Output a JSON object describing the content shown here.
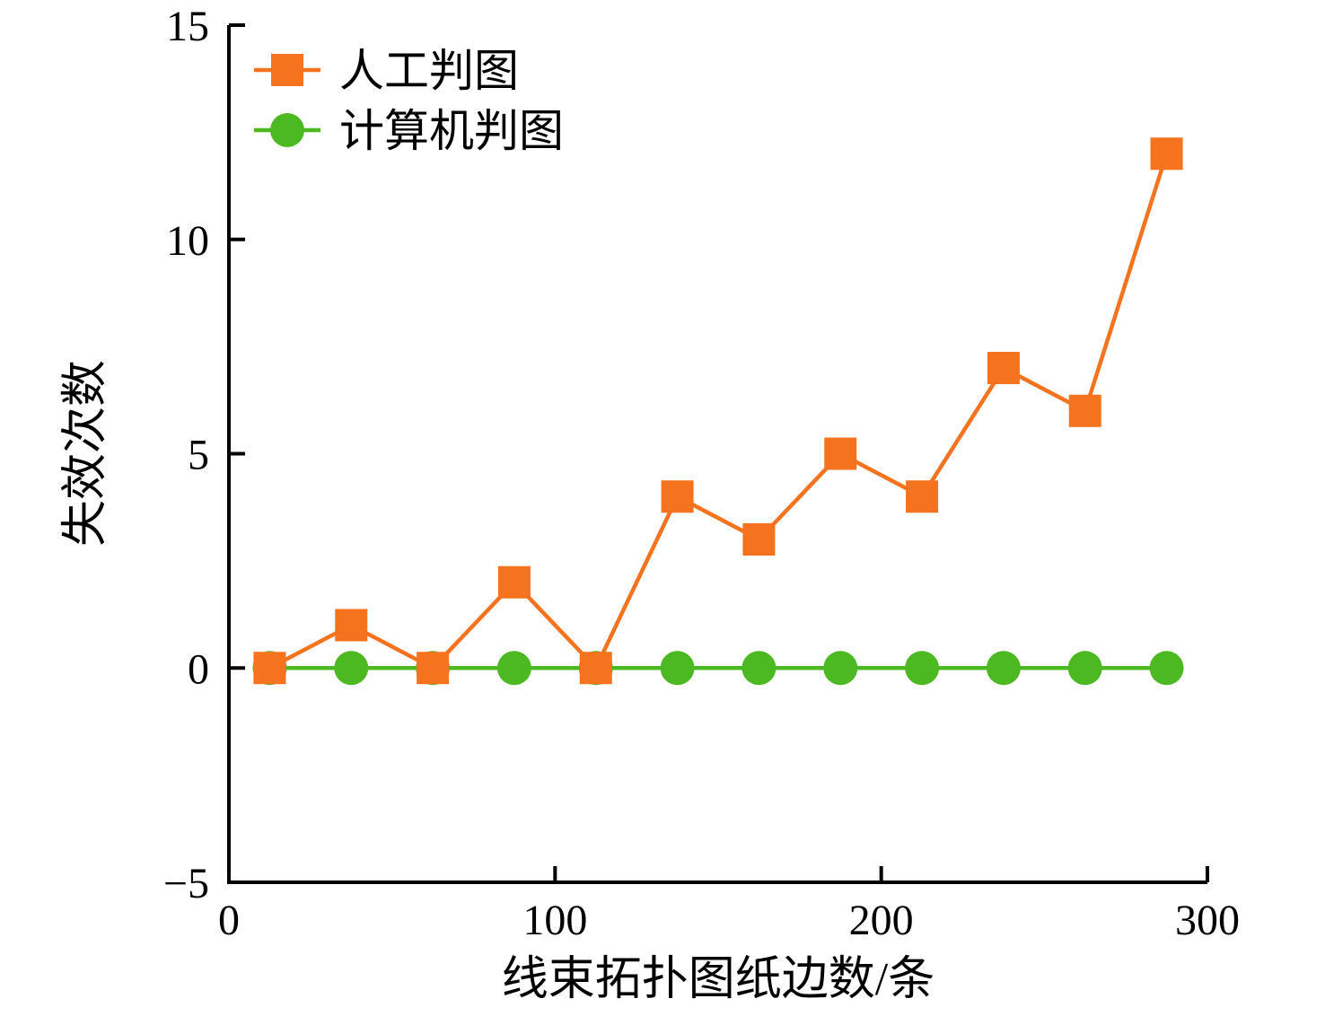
{
  "chart_data": {
    "type": "line",
    "title": "",
    "xlabel": "线束拓扑图纸边数/条",
    "ylabel": "失效次数",
    "xlim": [
      0,
      300
    ],
    "ylim": [
      -5,
      15
    ],
    "xticks": [
      0,
      100,
      200,
      300
    ],
    "yticks": [
      -5,
      0,
      5,
      10,
      15
    ],
    "grid": false,
    "legend_position": "top-left",
    "x": [
      12.5,
      37.5,
      62.5,
      87.5,
      112.5,
      137.5,
      162.5,
      187.5,
      212.5,
      237.5,
      262.5,
      287.5
    ],
    "series": [
      {
        "name": "人工判图",
        "marker": "square",
        "color": "#f5731f",
        "values": [
          0,
          1,
          0,
          2,
          0,
          4,
          3,
          5,
          4,
          7,
          6,
          12
        ]
      },
      {
        "name": "计算机判图",
        "marker": "circle",
        "color": "#4cb822",
        "values": [
          0,
          0,
          0,
          0,
          0,
          0,
          0,
          0,
          0,
          0,
          0,
          0
        ]
      }
    ],
    "colors": {
      "axis": "#000000",
      "background": "#ffffff"
    }
  }
}
